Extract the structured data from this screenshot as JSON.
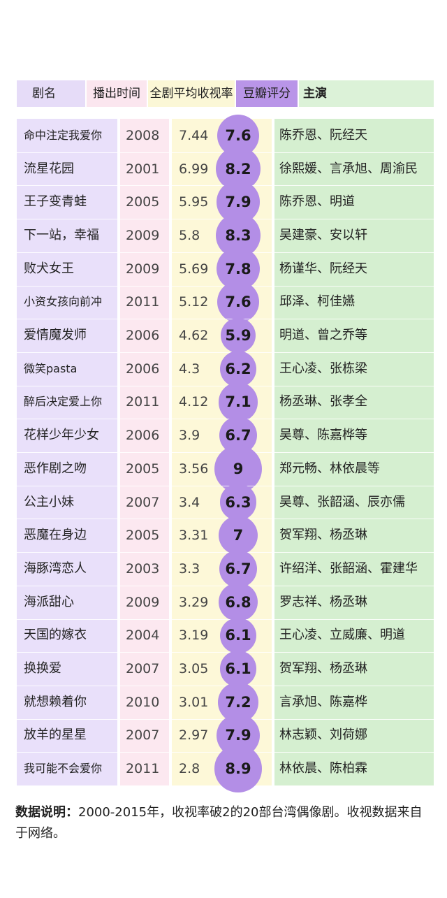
{
  "header": {
    "name": "剧名",
    "date": "播出时间",
    "rating": "全剧平均收视率",
    "score": "豆瓣评分",
    "cast": "主演"
  },
  "chart_data": {
    "type": "table",
    "columns": [
      "剧名",
      "播出时间",
      "全剧平均收视率",
      "豆瓣评分",
      "主演"
    ],
    "rows": [
      {
        "name": "命中注定我爱你",
        "year": "2008",
        "rating": "7.44",
        "score": "7.6",
        "cast": "陈乔恩、阮经天"
      },
      {
        "name": "流星花园",
        "year": "2001",
        "rating": "6.99",
        "score": "8.2",
        "cast": "徐熙媛、言承旭、周渝民"
      },
      {
        "name": "王子变青蛙",
        "year": "2005",
        "rating": "5.95",
        "score": "7.9",
        "cast": "陈乔恩、明道"
      },
      {
        "name": "下一站，幸福",
        "year": "2009",
        "rating": "5.8",
        "score": "8.3",
        "cast": "吴建豪、安以轩"
      },
      {
        "name": "败犬女王",
        "year": "2009",
        "rating": "5.69",
        "score": "7.8",
        "cast": "杨谨华、阮经天"
      },
      {
        "name": "小资女孩向前冲",
        "year": "2011",
        "rating": "5.12",
        "score": "7.6",
        "cast": "邱泽、柯佳嬿"
      },
      {
        "name": "爱情魔发师",
        "year": "2006",
        "rating": "4.62",
        "score": "5.9",
        "cast": "明道、曾之乔等"
      },
      {
        "name": "微笑pasta",
        "year": "2006",
        "rating": "4.3",
        "score": "6.2",
        "cast": "王心凌、张栋梁"
      },
      {
        "name": "醉后决定爱上你",
        "year": "2011",
        "rating": "4.12",
        "score": "7.1",
        "cast": "杨丞琳、张孝全"
      },
      {
        "name": "花样少年少女",
        "year": "2006",
        "rating": "3.9",
        "score": "6.7",
        "cast": "吴尊、陈嘉桦等"
      },
      {
        "name": "恶作剧之吻",
        "year": "2005",
        "rating": "3.56",
        "score": "9",
        "cast": "郑元畅、林依晨等"
      },
      {
        "name": "公主小妹",
        "year": "2007",
        "rating": "3.4",
        "score": "6.3",
        "cast": "吴尊、张韶涵、辰亦儒"
      },
      {
        "name": "恶魔在身边",
        "year": "2005",
        "rating": "3.31",
        "score": "7",
        "cast": "贺军翔、杨丞琳"
      },
      {
        "name": "海豚湾恋人",
        "year": "2003",
        "rating": "3.3",
        "score": "6.7",
        "cast": "许绍洋、张韶涵、霍建华"
      },
      {
        "name": "海派甜心",
        "year": "2009",
        "rating": "3.29",
        "score": "6.8",
        "cast": "罗志祥、杨丞琳"
      },
      {
        "name": "天国的嫁衣",
        "year": "2004",
        "rating": "3.19",
        "score": "6.1",
        "cast": "王心凌、立威廉、明道"
      },
      {
        "name": "换换爱",
        "year": "2007",
        "rating": "3.05",
        "score": "6.1",
        "cast": "贺军翔、杨丞琳"
      },
      {
        "name": "就想赖着你",
        "year": "2010",
        "rating": "3.01",
        "score": "7.2",
        "cast": "言承旭、陈嘉桦"
      },
      {
        "name": "放羊的星星",
        "year": "2007",
        "rating": "2.97",
        "score": "7.9",
        "cast": "林志颖、刘荷娜"
      },
      {
        "name": "我可能不会爱你",
        "year": "2011",
        "rating": "2.8",
        "score": "8.9",
        "cast": "林依晨、陈柏霖"
      }
    ]
  },
  "note": {
    "label": "数据说明：",
    "text": "2000-2015年，收视率破2的20部台湾偶像剧。收视数据来自于网络。"
  },
  "colors": {
    "name_col": "#e9e0fa",
    "date_col": "#fce8f0",
    "rating_col": "#fdf8d8",
    "score_header": "#b995e8",
    "bubble": "#b38ee6",
    "cast_col": "#d5efd0"
  }
}
